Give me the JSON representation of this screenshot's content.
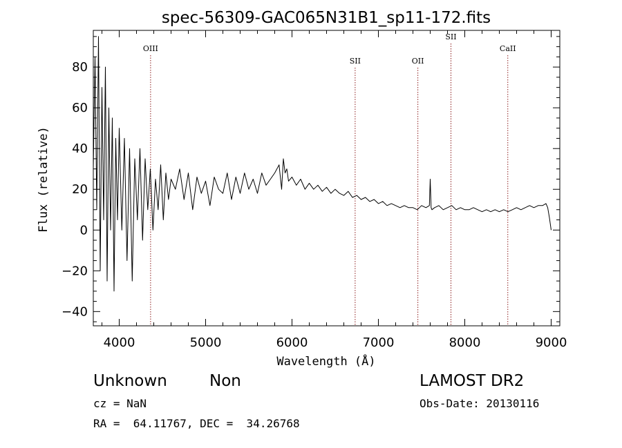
{
  "chart_data": {
    "type": "line",
    "title": "spec-56309-GAC065N31B1_sp11-172.fits",
    "xlabel": "Wavelength (Å)",
    "ylabel": "Flux (relative)",
    "xlim": [
      3700,
      9100
    ],
    "ylim": [
      -47,
      98
    ],
    "x_ticks": [
      4000,
      5000,
      6000,
      7000,
      8000,
      9000
    ],
    "y_ticks": [
      -40,
      -20,
      0,
      20,
      40,
      60,
      80
    ],
    "grid": false,
    "series": [
      {
        "x": [
          3700,
          3720,
          3740,
          3760,
          3780,
          3800,
          3820,
          3840,
          3860,
          3880,
          3900,
          3920,
          3940,
          3960,
          3980,
          4000,
          4030,
          4060,
          4090,
          4120,
          4150,
          4180,
          4210,
          4240,
          4270,
          4300,
          4330,
          4360,
          4390,
          4420,
          4450,
          4480,
          4510,
          4540,
          4570,
          4600,
          4650,
          4700,
          4750,
          4800,
          4850,
          4900,
          4950,
          5000,
          5050,
          5100,
          5150,
          5200,
          5250,
          5300,
          5350,
          5400,
          5450,
          5500,
          5550,
          5600,
          5650,
          5700,
          5750,
          5800,
          5850,
          5880,
          5900,
          5920,
          5940,
          5960,
          6000,
          6050,
          6100,
          6150,
          6200,
          6250,
          6300,
          6350,
          6400,
          6450,
          6500,
          6550,
          6600,
          6650,
          6700,
          6750,
          6800,
          6850,
          6900,
          6950,
          7000,
          7050,
          7100,
          7150,
          7200,
          7250,
          7300,
          7350,
          7400,
          7450,
          7500,
          7550,
          7590,
          7600,
          7610,
          7620,
          7650,
          7700,
          7750,
          7800,
          7850,
          7900,
          7950,
          8000,
          8050,
          8100,
          8150,
          8200,
          8250,
          8300,
          8350,
          8400,
          8450,
          8500,
          8550,
          8600,
          8650,
          8700,
          8750,
          8800,
          8850,
          8900,
          8940,
          8960,
          8980,
          9000
        ],
        "y": [
          30,
          85,
          10,
          95,
          -20,
          70,
          5,
          80,
          -25,
          60,
          0,
          55,
          -30,
          45,
          5,
          50,
          0,
          45,
          -15,
          40,
          -25,
          35,
          5,
          40,
          -5,
          35,
          10,
          30,
          0,
          25,
          10,
          32,
          5,
          28,
          15,
          25,
          20,
          30,
          15,
          28,
          10,
          26,
          18,
          24,
          12,
          26,
          20,
          18,
          28,
          15,
          26,
          18,
          28,
          20,
          25,
          18,
          28,
          22,
          25,
          28,
          32,
          20,
          35,
          28,
          30,
          24,
          26,
          22,
          25,
          20,
          23,
          20,
          22,
          19,
          21,
          18,
          20,
          18,
          17,
          19,
          16,
          17,
          15,
          16,
          14,
          15,
          13,
          14,
          12,
          13,
          12,
          11,
          12,
          11,
          11,
          10,
          12,
          11,
          12,
          25,
          11,
          10,
          11,
          12,
          10,
          11,
          12,
          10,
          11,
          10,
          10,
          11,
          10,
          9,
          10,
          9,
          10,
          9,
          10,
          9,
          10,
          11,
          10,
          11,
          12,
          11,
          12,
          12,
          13,
          11,
          6,
          0
        ]
      }
    ],
    "lines": [
      {
        "label": "OIII",
        "x": 4363
      },
      {
        "label": "SII",
        "x": 6731
      },
      {
        "label": "OII",
        "x": 7457
      },
      {
        "label": "SII",
        "x": 7840
      },
      {
        "label": "CaII",
        "x": 8498
      }
    ]
  },
  "info": {
    "class": "Unknown",
    "subclass": "Non",
    "survey": "LAMOST DR2",
    "cz": "cz = NaN",
    "obs_date": "Obs-Date: 20130116",
    "coords": "RA =  64.11767, DEC =  34.26768"
  }
}
